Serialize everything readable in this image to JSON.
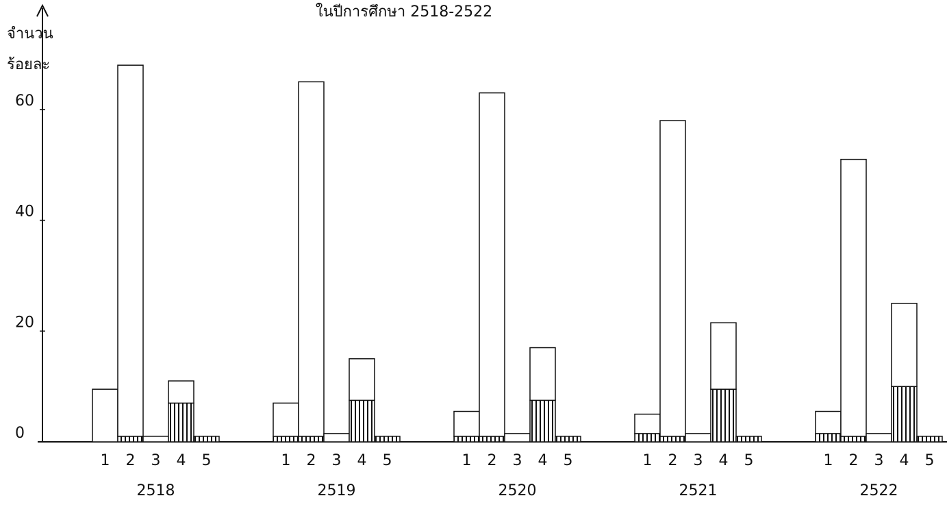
{
  "chart_data": {
    "type": "bar",
    "title": "ในปีการศึกษา 2518-2522",
    "ylabel": [
      "จำนวน",
      "ร้อยละ"
    ],
    "categories": [
      "2518",
      "2519",
      "2520",
      "2521",
      "2522"
    ],
    "series": [
      {
        "name": "1",
        "color": "#111111",
        "hatched_values": [
          0,
          1,
          1,
          1.5,
          1.5
        ],
        "values": [
          9.5,
          6,
          4.5,
          3.5,
          4
        ]
      },
      {
        "name": "2",
        "color": "#111111",
        "hatched_values": [
          1,
          1,
          1,
          1,
          1
        ],
        "values": [
          67,
          64,
          62,
          57,
          50
        ]
      },
      {
        "name": "3",
        "color": "#111111",
        "hatched_values": [
          0,
          0,
          0,
          0,
          0
        ],
        "values": [
          1,
          1.5,
          1.5,
          1.5,
          1.5
        ]
      },
      {
        "name": "4",
        "color": "#111111",
        "hatched_values": [
          7,
          7.5,
          7.5,
          9.5,
          10
        ],
        "values": [
          4,
          7.5,
          9.5,
          12,
          15
        ]
      },
      {
        "name": "5",
        "color": "#111111",
        "hatched_values": [
          1,
          1,
          1,
          1,
          1
        ],
        "values": [
          0,
          0,
          0,
          0,
          0
        ]
      }
    ],
    "ylim": [
      0,
      70
    ],
    "yticks": [
      0,
      20,
      40,
      60
    ],
    "grid": false
  }
}
